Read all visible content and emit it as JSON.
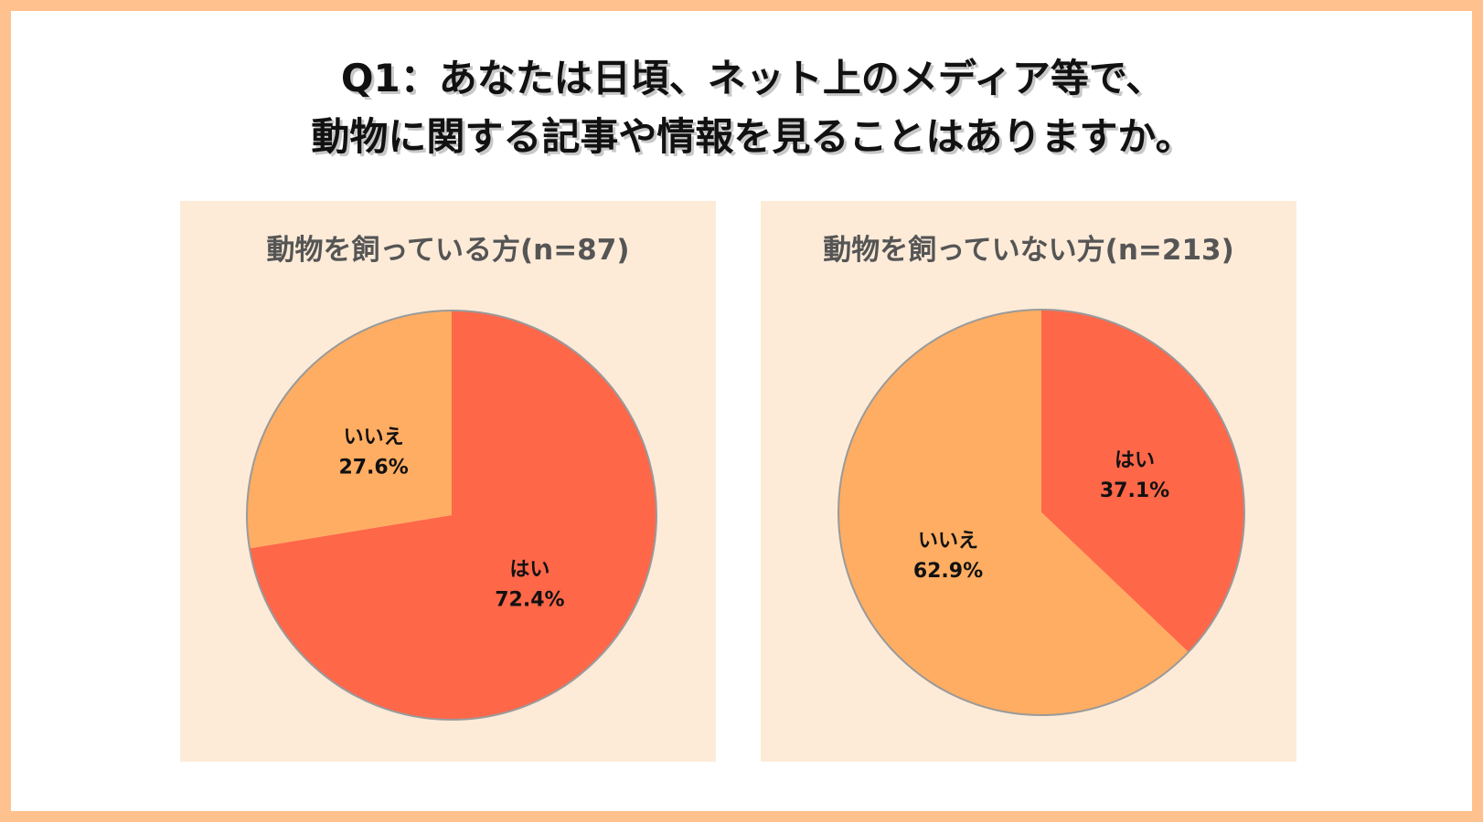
{
  "title": {
    "line1": "Q1：あなたは日頃、ネット上のメディア等で、",
    "line2": "動物に関する記事や情報を見ることはありますか。"
  },
  "colors": {
    "frame": "#ffc28e",
    "panel": "#fdebd8",
    "yes": "#ff6749",
    "no": "#ffad62"
  },
  "chart_data": [
    {
      "type": "pie",
      "title": "動物を飼っている方(n=87)",
      "slices": [
        {
          "label": "はい",
          "value": 72.4,
          "value_label": "72.4%",
          "color": "#ff6749"
        },
        {
          "label": "いいえ",
          "value": 27.6,
          "value_label": "27.6%",
          "color": "#ffad62"
        }
      ],
      "start": "12 o'clock",
      "direction": "clockwise"
    },
    {
      "type": "pie",
      "title": "動物を飼っていない方(n=213)",
      "slices": [
        {
          "label": "はい",
          "value": 37.1,
          "value_label": "37.1%",
          "color": "#ff6749"
        },
        {
          "label": "いいえ",
          "value": 62.9,
          "value_label": "62.9%",
          "color": "#ffad62"
        }
      ],
      "start": "12 o'clock",
      "direction": "clockwise"
    }
  ]
}
